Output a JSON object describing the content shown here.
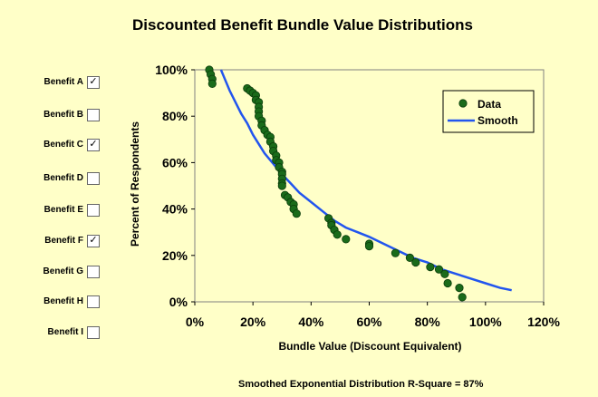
{
  "benefits": [
    {
      "label": "Benefit A",
      "checked": true
    },
    {
      "label": "Benefit B",
      "checked": false
    },
    {
      "label": "Benefit C",
      "checked": true
    },
    {
      "label": "Benefit D",
      "checked": false
    },
    {
      "label": "Benefit E",
      "checked": false
    },
    {
      "label": "Benefit F",
      "checked": true
    },
    {
      "label": "Benefit G",
      "checked": false
    },
    {
      "label": "Benefit H",
      "checked": false
    },
    {
      "label": "Benefit I",
      "checked": false
    }
  ],
  "footer": "Smoothed Exponential Distribution  R-Square = 87%",
  "check_glyph": "✓",
  "chart_data": {
    "type": "scatter",
    "title": "Discounted Benefit Bundle Value Distributions",
    "xlabel": "Bundle Value (Discount Equivalent)",
    "ylabel": "Percent of Respondents",
    "xlim": [
      0,
      120
    ],
    "ylim": [
      0,
      100
    ],
    "x_ticks": [
      "0%",
      "20%",
      "40%",
      "60%",
      "80%",
      "100%",
      "120%"
    ],
    "y_ticks": [
      "0%",
      "20%",
      "40%",
      "60%",
      "80%",
      "100%"
    ],
    "legend_position": "top-right",
    "colors": {
      "data": "#1a6b1a",
      "smooth": "#2255ee",
      "plot_bg": "#ffffc8"
    },
    "series": [
      {
        "name": "Data",
        "kind": "scatter",
        "points": [
          [
            5,
            100
          ],
          [
            5.5,
            98
          ],
          [
            6,
            96
          ],
          [
            6,
            94
          ],
          [
            18,
            92
          ],
          [
            19,
            91
          ],
          [
            20,
            90
          ],
          [
            21,
            89
          ],
          [
            21,
            87
          ],
          [
            22,
            86
          ],
          [
            22,
            84
          ],
          [
            22,
            82
          ],
          [
            22,
            80
          ],
          [
            23,
            78
          ],
          [
            23,
            76
          ],
          [
            24,
            74
          ],
          [
            25,
            72
          ],
          [
            26,
            71
          ],
          [
            26,
            69
          ],
          [
            27,
            67
          ],
          [
            27,
            65
          ],
          [
            28,
            63
          ],
          [
            28,
            61
          ],
          [
            29,
            60
          ],
          [
            29,
            58
          ],
          [
            30,
            56
          ],
          [
            30,
            55
          ],
          [
            30,
            53
          ],
          [
            30,
            51
          ],
          [
            30,
            50
          ],
          [
            31,
            46
          ],
          [
            32,
            45
          ],
          [
            33,
            43
          ],
          [
            34,
            42
          ],
          [
            34,
            40
          ],
          [
            35,
            38
          ],
          [
            46,
            36
          ],
          [
            47,
            34
          ],
          [
            47,
            33
          ],
          [
            48,
            31
          ],
          [
            49,
            29
          ],
          [
            52,
            27
          ],
          [
            60,
            25
          ],
          [
            60,
            24
          ],
          [
            69,
            21
          ],
          [
            74,
            19
          ],
          [
            76,
            17
          ],
          [
            81,
            15
          ],
          [
            84,
            14
          ],
          [
            86,
            12
          ],
          [
            87,
            8
          ],
          [
            91,
            6
          ],
          [
            92,
            2
          ]
        ]
      },
      {
        "name": "Smooth",
        "kind": "line",
        "points": [
          [
            9,
            100
          ],
          [
            10,
            97
          ],
          [
            12,
            91
          ],
          [
            14,
            86
          ],
          [
            16,
            81
          ],
          [
            18,
            77
          ],
          [
            20,
            72
          ],
          [
            22,
            68
          ],
          [
            24,
            64
          ],
          [
            26,
            61
          ],
          [
            28,
            58
          ],
          [
            30,
            55
          ],
          [
            33,
            51
          ],
          [
            36,
            47
          ],
          [
            40,
            43
          ],
          [
            44,
            39
          ],
          [
            48,
            35
          ],
          [
            52,
            32
          ],
          [
            56,
            30
          ],
          [
            60,
            28
          ],
          [
            65,
            25
          ],
          [
            70,
            22
          ],
          [
            75,
            19
          ],
          [
            80,
            17
          ],
          [
            85,
            14
          ],
          [
            90,
            12
          ],
          [
            95,
            10
          ],
          [
            100,
            8
          ],
          [
            105,
            6
          ],
          [
            109,
            5
          ]
        ]
      }
    ]
  }
}
